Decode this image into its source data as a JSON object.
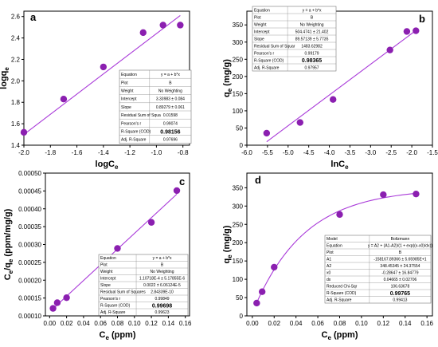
{
  "colors": {
    "marker": "#8b1fb0",
    "line": "#a93ad9",
    "axis": "#000000"
  },
  "chart_data": [
    {
      "panel": "a",
      "type": "scatter",
      "xlabel": "logC",
      "xlabel_sub": "e",
      "ylabel": "logq",
      "ylabel_sub": "e",
      "xlim": [
        -2.0,
        -0.75
      ],
      "ylim": [
        1.4,
        2.65
      ],
      "xticks": [
        -2.0,
        -1.8,
        -1.6,
        -1.4,
        -1.2,
        -1.0,
        -0.8
      ],
      "xtick_labels": [
        "-2.0",
        "-1.8",
        "-1.6",
        "-1.4",
        "-1.2",
        "-1.0",
        "-0.8"
      ],
      "yticks": [
        1.4,
        1.6,
        1.8,
        2.0,
        2.2,
        2.4,
        2.6
      ],
      "ytick_labels": [
        "1.4",
        "1.6",
        "1.8",
        "2.0",
        "2.2",
        "2.4",
        "2.6"
      ],
      "x": [
        -2.0,
        -1.7,
        -1.4,
        -1.1,
        -0.95,
        -0.82
      ],
      "y": [
        1.52,
        1.83,
        2.13,
        2.45,
        2.52,
        2.52
      ],
      "fit": {
        "kind": "linear",
        "x": [
          -2.0,
          -0.82
        ],
        "y": [
          1.5,
          2.61
        ]
      },
      "table": [
        [
          "Equation",
          "y = a + b*x"
        ],
        [
          "Plot",
          "B"
        ],
        [
          "Weight",
          "No Weighting"
        ],
        [
          "Intercept",
          "3.33983 ± 0.084"
        ],
        [
          "Slope",
          "0.89279 ± 0.061"
        ],
        [
          "Residual Sum of Squa",
          "0.01598"
        ],
        [
          "Pearson's r",
          "0.99074"
        ],
        [
          "R-Square (COD)",
          "0.98156"
        ],
        [
          "Adj. R-Square",
          "0.97696"
        ]
      ],
      "table_bold_row": 7
    },
    {
      "panel": "b",
      "type": "scatter",
      "xlabel": "lnC",
      "xlabel_sub": "e",
      "ylabel": "q",
      "ylabel_sub": "e",
      "ylabel_unit": " (mg/g)",
      "xlim": [
        -6.0,
        -1.5
      ],
      "ylim": [
        0,
        390
      ],
      "xticks": [
        -6.0,
        -5.5,
        -5.0,
        -4.5,
        -4.0,
        -3.5,
        -3.0,
        -2.5,
        -2.0,
        -1.5
      ],
      "xtick_labels": [
        "-6.0",
        "-5.5",
        "-5.0",
        "-4.5",
        "-4.0",
        "-3.5",
        "-3.0",
        "-2.5",
        "-2.0",
        "-1.5"
      ],
      "yticks": [
        0,
        50,
        100,
        150,
        200,
        250,
        300,
        350
      ],
      "ytick_labels": [
        "0",
        "50",
        "100",
        "150",
        "200",
        "250",
        "300",
        "350"
      ],
      "x": [
        -5.52,
        -4.71,
        -3.91,
        -2.53,
        -2.12,
        -1.9
      ],
      "y": [
        35,
        66,
        133,
        277,
        331,
        333
      ],
      "fit": {
        "kind": "linear",
        "x": [
          -5.52,
          -1.9
        ],
        "y": [
          10,
          334
        ]
      },
      "table": [
        [
          "Equation",
          "y = a + b*x"
        ],
        [
          "Plot",
          "B"
        ],
        [
          "Weight",
          "No Weighting"
        ],
        [
          "Intercept",
          "504.4741 ± 21.402"
        ],
        [
          "Slope",
          "89.57139 ± 5.7735"
        ],
        [
          "Residual Sum of Squar",
          "1483.62982"
        ],
        [
          "Pearson's r",
          "0.99179"
        ],
        [
          "R-Square (COD)",
          "0.98365"
        ],
        [
          "Adj. R-Square",
          "0.97957"
        ]
      ],
      "table_bold_row": 7
    },
    {
      "panel": "c",
      "type": "scatter",
      "xlabel": "C",
      "xlabel_sub": "e",
      "xlabel_unit": " (ppm)",
      "ylabel": "C",
      "ylabel_sub": "e",
      "ylabel_mid": "/q",
      "ylabel_sub2": "e",
      "ylabel_unit": " (ppm/mg/g)",
      "xlim": [
        -0.005,
        0.165
      ],
      "ylim": [
        0.0001,
        0.0005
      ],
      "xticks": [
        0.0,
        0.02,
        0.04,
        0.06,
        0.08,
        0.1,
        0.12,
        0.14,
        0.16
      ],
      "xtick_labels": [
        "0.00",
        "0.02",
        "0.04",
        "0.06",
        "0.08",
        "0.10",
        "0.12",
        "0.14",
        "0.16"
      ],
      "yticks": [
        0.0001,
        0.00015,
        0.0002,
        0.00025,
        0.0003,
        0.00035,
        0.0004,
        0.00045,
        0.0005
      ],
      "ytick_labels": [
        "0.00010",
        "0.00015",
        "0.00020",
        "0.00025",
        "0.00030",
        "0.00035",
        "0.00040",
        "0.00045",
        "0.00050"
      ],
      "x": [
        0.004,
        0.009,
        0.02,
        0.08,
        0.12,
        0.15
      ],
      "y": [
        0.000121,
        0.000137,
        0.000151,
        0.000289,
        0.000362,
        0.000451
      ],
      "fit": {
        "kind": "linear",
        "x": [
          0.004,
          0.15
        ],
        "y": [
          0.00012,
          0.000441
        ]
      },
      "table": [
        [
          "Equation",
          "y = a + b*x"
        ],
        [
          "Plot",
          "B"
        ],
        [
          "Weight",
          "No Weighting"
        ],
        [
          "Intercept",
          "1.10718E-4 ± 5.17855E-6"
        ],
        [
          "Slope",
          "0.0022 ± 6.06124E-5"
        ],
        [
          "Residual Sum of Squares",
          "2.84339E-10"
        ],
        [
          "Pearson's r",
          "0.99849"
        ],
        [
          "R-Square (COD)",
          "0.99698"
        ],
        [
          "Adj. R-Square",
          "0.99623"
        ]
      ],
      "table_bold_row": 7
    },
    {
      "panel": "d",
      "type": "scatter",
      "xlabel": "C",
      "xlabel_sub": "e",
      "xlabel_unit": " (ppm)",
      "ylabel": "q",
      "ylabel_sub": "e",
      "ylabel_unit": " (mg/g)",
      "xlim": [
        -0.005,
        0.165
      ],
      "ylim": [
        0,
        390
      ],
      "xticks": [
        0.0,
        0.02,
        0.04,
        0.06,
        0.08,
        0.1,
        0.12,
        0.14,
        0.16
      ],
      "xtick_labels": [
        "0.00",
        "0.02",
        "0.04",
        "0.06",
        "0.08",
        "0.10",
        "0.12",
        "0.14",
        "0.16"
      ],
      "yticks": [
        0,
        50,
        100,
        150,
        200,
        250,
        300,
        350
      ],
      "ytick_labels": [
        "0",
        "50",
        "100",
        "150",
        "200",
        "250",
        "300",
        "350"
      ],
      "x": [
        0.004,
        0.009,
        0.02,
        0.08,
        0.12,
        0.15
      ],
      "y": [
        35,
        66,
        133,
        277,
        331,
        333
      ],
      "fit": {
        "kind": "boltzmann",
        "A1": -158167.89366,
        "A2": 348.45345,
        "x0": -0.28647,
        "dx": 0.04665,
        "xrange": [
          0.004,
          0.15
        ]
      },
      "table": [
        [
          "Model",
          "Boltzmann"
        ],
        [
          "Equation",
          "y = A2 + (A1-A2)/(1 + exp((x-x0)/dx))"
        ],
        [
          "Plot",
          "B"
        ],
        [
          "A1",
          "-158167.89366 ± 5.65985E+1"
        ],
        [
          "A2",
          "348.45345 ± 24.37554"
        ],
        [
          "x0",
          "-0.28647 ± 16.84779"
        ],
        [
          "dx",
          "0.04665 ± 0.02706"
        ],
        [
          "Reduced Chi-Sqr",
          "106.63678"
        ],
        [
          "R-Square (COD)",
          "0.99765"
        ],
        [
          "Adj. R-Square",
          "0.99413"
        ]
      ],
      "table_bold_row": 8
    }
  ]
}
